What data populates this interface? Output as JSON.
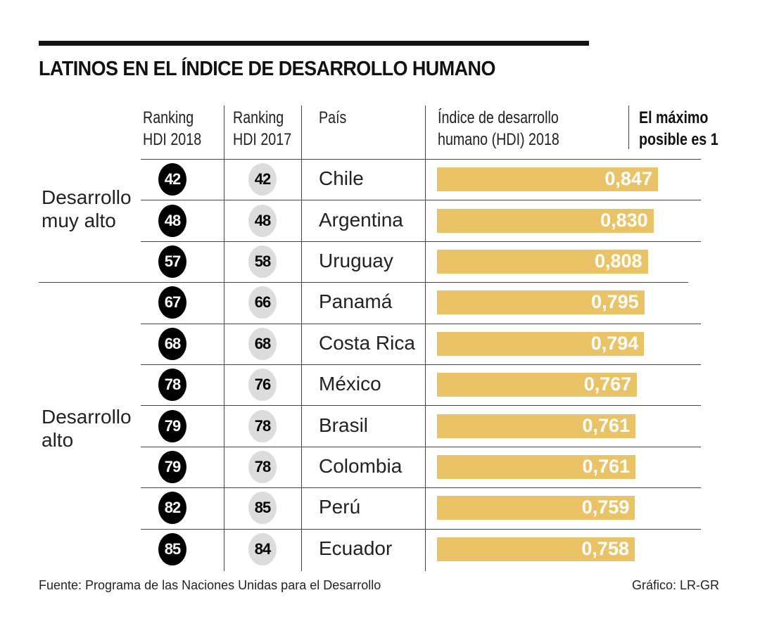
{
  "chart_data": {
    "type": "table",
    "title": "LATINOS EN EL ÍNDICE DE DESARROLLO HUMANO",
    "columns": [
      "Ranking HDI 2018",
      "Ranking HDI 2017",
      "País",
      "Índice de desarrollo humano (HDI) 2018"
    ],
    "note": "El máximo posible es 1",
    "groups": [
      {
        "label": "Desarrollo muy alto",
        "rows": [
          0,
          1,
          2
        ]
      },
      {
        "label": "Desarrollo alto",
        "rows": [
          3,
          4,
          5,
          6,
          7,
          8,
          9
        ]
      }
    ],
    "rows": [
      {
        "rank2018": "42",
        "rank2017": "42",
        "country": "Chile",
        "hdi": 0.847,
        "hdi_label": "0,847"
      },
      {
        "rank2018": "48",
        "rank2017": "48",
        "country": "Argentina",
        "hdi": 0.83,
        "hdi_label": "0,830"
      },
      {
        "rank2018": "57",
        "rank2017": "58",
        "country": "Uruguay",
        "hdi": 0.808,
        "hdi_label": "0,808"
      },
      {
        "rank2018": "67",
        "rank2017": "66",
        "country": "Panamá",
        "hdi": 0.795,
        "hdi_label": "0,795"
      },
      {
        "rank2018": "68",
        "rank2017": "68",
        "country": "Costa Rica",
        "hdi": 0.794,
        "hdi_label": "0,794"
      },
      {
        "rank2018": "78",
        "rank2017": "76",
        "country": "México",
        "hdi": 0.767,
        "hdi_label": "0,767"
      },
      {
        "rank2018": "79",
        "rank2017": "78",
        "country": "Brasil",
        "hdi": 0.761,
        "hdi_label": "0,761"
      },
      {
        "rank2018": "79",
        "rank2017": "78",
        "country": "Colombia",
        "hdi": 0.761,
        "hdi_label": "0,761"
      },
      {
        "rank2018": "82",
        "rank2017": "85",
        "country": "Perú",
        "hdi": 0.759,
        "hdi_label": "0,759"
      },
      {
        "rank2018": "85",
        "rank2017": "84",
        "country": "Ecuador",
        "hdi": 0.758,
        "hdi_label": "0,758"
      }
    ],
    "bar_color": "#e9c365",
    "source": "Fuente: Programa de las Naciones Unidas para el Desarrollo",
    "credit": "Gráfico: LR-GR"
  },
  "headers": {
    "rank2018": [
      "Ranking",
      "HDI 2018"
    ],
    "rank2017": [
      "Ranking",
      "HDI 2017"
    ],
    "country": "País",
    "hdi": [
      "Índice de desarrollo",
      "humano (HDI) 2018"
    ],
    "note": [
      "El máximo",
      "posible es 1"
    ]
  },
  "group_lines": {
    "g1": [
      "Desarrollo",
      "muy alto"
    ],
    "g2": [
      "Desarrollo",
      "alto"
    ]
  }
}
